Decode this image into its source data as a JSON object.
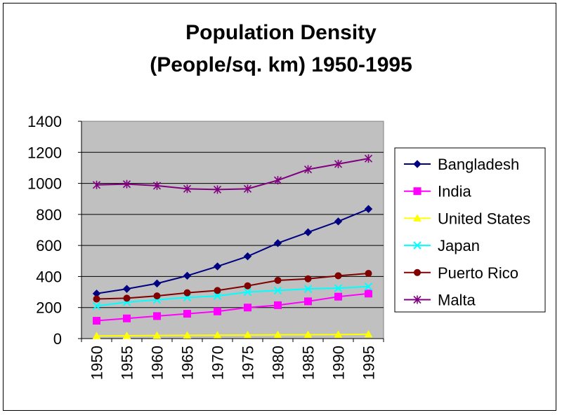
{
  "chart_data": {
    "type": "line",
    "title_line1": "Population Density",
    "title_line2": "(People/sq. km) 1950-1995",
    "xlabel": "",
    "ylabel": "",
    "categories": [
      "1950",
      "1955",
      "1960",
      "1965",
      "1970",
      "1975",
      "1980",
      "1985",
      "1990",
      "1995"
    ],
    "ylim": [
      0,
      1400
    ],
    "yticks": [
      0,
      200,
      400,
      600,
      800,
      1000,
      1200,
      1400
    ],
    "grid": true,
    "legend_position": "right",
    "series": [
      {
        "name": "Bangladesh",
        "color": "#000080",
        "marker": "diamond",
        "values": [
          290,
          320,
          355,
          405,
          465,
          530,
          615,
          685,
          755,
          835
        ]
      },
      {
        "name": "India",
        "color": "#FF00FF",
        "marker": "square",
        "values": [
          115,
          130,
          145,
          160,
          175,
          200,
          215,
          240,
          270,
          290
        ]
      },
      {
        "name": "United States",
        "color": "#FFFF00",
        "marker": "triangle",
        "values": [
          17,
          18,
          20,
          21,
          22,
          23,
          24,
          25,
          26,
          28
        ]
      },
      {
        "name": "Japan",
        "color": "#00FFFF",
        "marker": "x",
        "values": [
          210,
          235,
          250,
          265,
          275,
          300,
          310,
          320,
          325,
          335
        ]
      },
      {
        "name": "Puerto Rico",
        "color": "#800000",
        "marker": "circle",
        "values": [
          255,
          260,
          275,
          295,
          310,
          340,
          375,
          385,
          405,
          420
        ]
      },
      {
        "name": "Malta",
        "color": "#800080",
        "marker": "star",
        "values": [
          990,
          995,
          985,
          965,
          960,
          965,
          1020,
          1090,
          1125,
          1160
        ]
      }
    ]
  }
}
